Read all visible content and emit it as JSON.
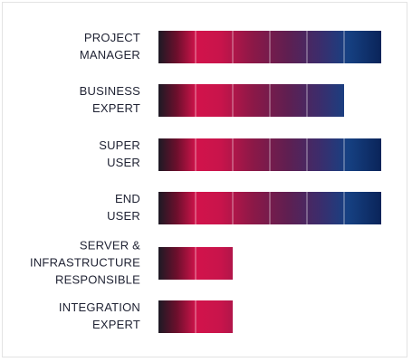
{
  "chart_data": {
    "type": "bar",
    "orientation": "horizontal",
    "grid": false,
    "categories": [
      [
        "PROJECT",
        "MANAGER"
      ],
      [
        "BUSINESS",
        "EXPERT"
      ],
      [
        "SUPER",
        "USER"
      ],
      [
        "END",
        "USER"
      ],
      [
        "SERVER &",
        "INFRASTRUCTURE",
        "RESPONSIBLE"
      ],
      [
        "INTEGRATION",
        "EXPERT"
      ]
    ],
    "values": [
      6,
      5,
      6,
      6,
      2,
      2
    ],
    "max_value": 6,
    "segment_colors": [
      "#2b1120",
      "#d3134b",
      "#a41546",
      "#6e1e4b",
      "#3b2a6a",
      "#0f3f8a"
    ]
  }
}
